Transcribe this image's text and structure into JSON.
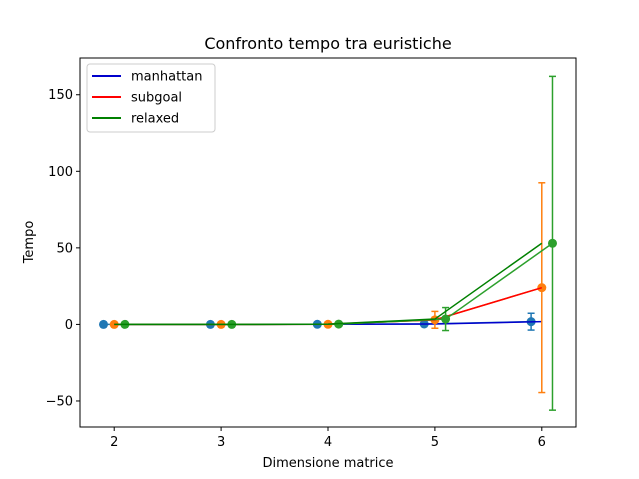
{
  "chart_data": {
    "type": "line",
    "title": "Confronto tempo tra euristiche",
    "xlabel": "Dimensione matrice",
    "ylabel": "Tempo",
    "xlim": [
      1.68,
      6.32
    ],
    "ylim": [
      -67,
      174
    ],
    "xticks": [
      2,
      3,
      4,
      5,
      6
    ],
    "yticks": [
      -50,
      0,
      50,
      100,
      150
    ],
    "ytick_labels": [
      "−50",
      "0",
      "50",
      "100",
      "150"
    ],
    "grid": false,
    "legend_position": "upper left",
    "series": [
      {
        "name": "manhattan",
        "line_color": "#0000cc",
        "marker_color": "#1f77b4",
        "x_offset": -0.1,
        "x": [
          2,
          3,
          4,
          5,
          6
        ],
        "y": [
          0.0,
          0.0,
          0.1,
          0.3,
          1.8
        ],
        "err": [
          0.0,
          0.0,
          0.0,
          0.0,
          5.5
        ]
      },
      {
        "name": "subgoal",
        "line_color": "#ff0000",
        "marker_color": "#ff7f0e",
        "x_offset": 0.0,
        "x": [
          2,
          3,
          4,
          5,
          6
        ],
        "y": [
          0.0,
          0.0,
          0.1,
          3.0,
          24.0
        ],
        "err": [
          0.0,
          0.0,
          0.0,
          5.5,
          68.5
        ]
      },
      {
        "name": "relaxed",
        "line_color": "#008000",
        "marker_color": "#2ca02c",
        "x_offset": 0.1,
        "x": [
          2,
          3,
          4,
          5,
          6
        ],
        "y": [
          0.0,
          0.0,
          0.2,
          3.5,
          53.0
        ],
        "err": [
          0.0,
          0.0,
          0.0,
          7.5,
          109.0
        ]
      }
    ]
  }
}
